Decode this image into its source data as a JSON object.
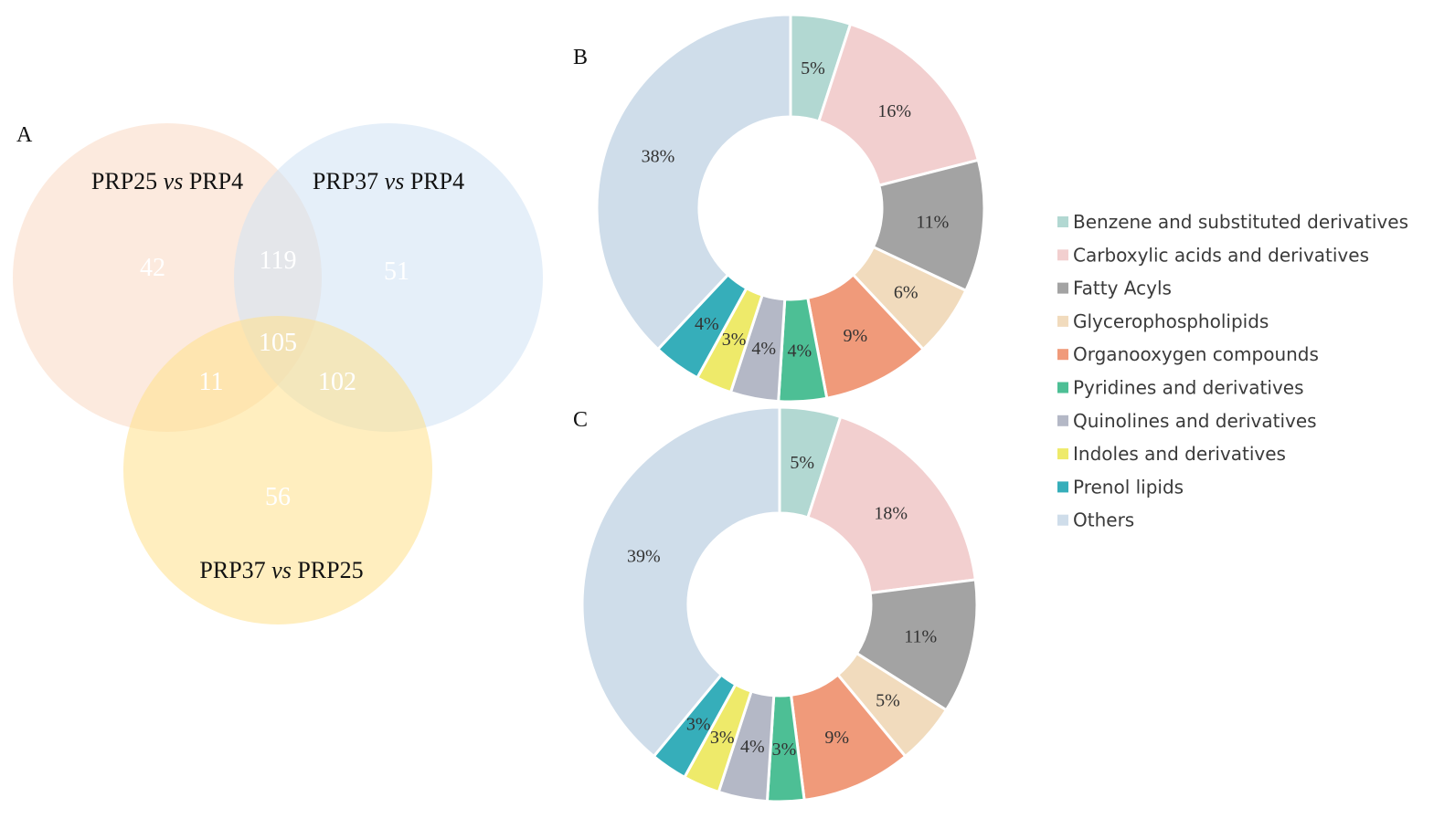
{
  "chart_data": [
    {
      "type": "venn",
      "panel": "A",
      "sets": [
        {
          "key": "s1",
          "name": "PRP25",
          "conj": "vs",
          "ref": "PRP4",
          "color": "#F9D8C2"
        },
        {
          "key": "s2",
          "name": "PRP37",
          "conj": "vs",
          "ref": "PRP4",
          "color": "#CFE2F4"
        },
        {
          "key": "s3",
          "name": "PRP37",
          "conj": "vs",
          "ref": "PRP25",
          "color": "#FFE08A"
        }
      ],
      "regions": {
        "only_1": "42",
        "only_2": "51",
        "only_3": "56",
        "r12": "119",
        "r13": "11",
        "r23": "102",
        "r123": "105"
      }
    },
    {
      "type": "pie",
      "panel": "B",
      "slices": [
        {
          "category": "Benzene and substituted derivatives",
          "value": 5,
          "label": "5%"
        },
        {
          "category": "Carboxylic acids and derivatives",
          "value": 16,
          "label": "16%"
        },
        {
          "category": "Fatty Acyls",
          "value": 11,
          "label": "11%"
        },
        {
          "category": "Glycerophospholipids",
          "value": 6,
          "label": "6%"
        },
        {
          "category": "Organooxygen compounds",
          "value": 9,
          "label": "9%"
        },
        {
          "category": "Pyridines and derivatives",
          "value": 4,
          "label": "4%"
        },
        {
          "category": "Quinolines and derivatives",
          "value": 4,
          "label": "4%"
        },
        {
          "category": "Indoles and derivatives",
          "value": 3,
          "label": "3%"
        },
        {
          "category": "Prenol lipids",
          "value": 4,
          "label": "4%"
        },
        {
          "category": "Others",
          "value": 38,
          "label": "38%"
        }
      ]
    },
    {
      "type": "pie",
      "panel": "C",
      "slices": [
        {
          "category": "Benzene and substituted derivatives",
          "value": 5,
          "label": "5%"
        },
        {
          "category": "Carboxylic acids and derivatives",
          "value": 18,
          "label": "18%"
        },
        {
          "category": "Fatty Acyls",
          "value": 11,
          "label": "11%"
        },
        {
          "category": "Glycerophospholipids",
          "value": 5,
          "label": "5%"
        },
        {
          "category": "Organooxygen compounds",
          "value": 9,
          "label": "9%"
        },
        {
          "category": "Pyridines and derivatives",
          "value": 3,
          "label": "3%"
        },
        {
          "category": "Quinolines and derivatives",
          "value": 4,
          "label": "4%"
        },
        {
          "category": "Indoles and derivatives",
          "value": 3,
          "label": "3%"
        },
        {
          "category": "Prenol lipids",
          "value": 3,
          "label": "3%"
        },
        {
          "category": "Others",
          "value": 39,
          "label": "39%"
        }
      ]
    }
  ],
  "legend": [
    {
      "label": "Benzene and substituted derivatives",
      "color": "#B2D8D2"
    },
    {
      "label": "Carboxylic acids and derivatives",
      "color": "#F2CFCF"
    },
    {
      "label": "Fatty Acyls",
      "color": "#A3A3A3"
    },
    {
      "label": "Glycerophospholipids",
      "color": "#F1DBBD"
    },
    {
      "label": "Organooxygen compounds",
      "color": "#F09A7A"
    },
    {
      "label": "Pyridines and derivatives",
      "color": "#4DBF95"
    },
    {
      "label": "Quinolines and derivatives",
      "color": "#B4B8C6"
    },
    {
      "label": "Indoles and derivatives",
      "color": "#EEEA6A"
    },
    {
      "label": "Prenol lipids",
      "color": "#36AEBA"
    },
    {
      "label": "Others",
      "color": "#CFDDEA"
    }
  ]
}
